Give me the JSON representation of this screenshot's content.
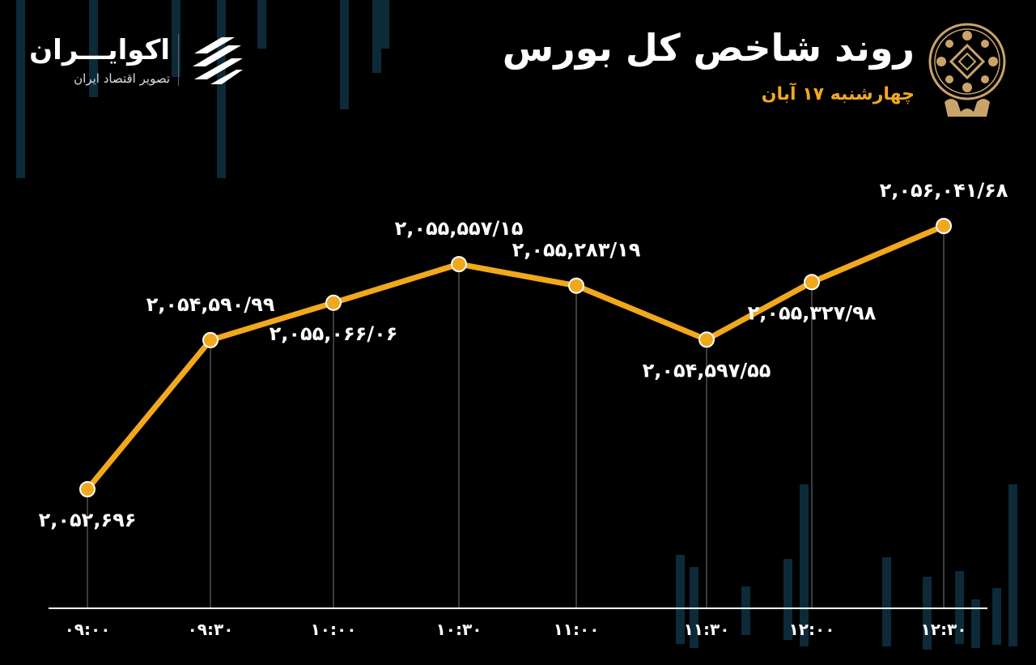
{
  "header": {
    "title": "روند شاخص کل بورس",
    "subtitle": "چهارشنبه ۱۷ آبان"
  },
  "brand": {
    "name": "اکوایـــران",
    "tagline": "تصویر اقتصاد ایران"
  },
  "colors": {
    "background": "#000000",
    "line": "#f2a81d",
    "marker": "#f2a81d",
    "marker_stroke": "#ffffff",
    "axis": "#ffffff",
    "guide": "#777777",
    "accent": "#f2a81d",
    "bg_bars": "#0d2a38"
  },
  "icons": {
    "brand_logo": "ecoiran-logo-icon",
    "emblem": "stock-exchange-emblem-icon"
  },
  "chart_data": {
    "type": "line",
    "title": "روند شاخص کل بورس",
    "xlabel": "",
    "ylabel": "",
    "categories": [
      "۰۹:۰۰",
      "۰۹:۳۰",
      "۱۰:۰۰",
      "۱۰:۳۰",
      "۱۱:۰۰",
      "۱۱:۳۰",
      "۱۲:۰۰",
      "۱۲:۳۰"
    ],
    "values": [
      2052696,
      2054590.99,
      2055066.06,
      2055557.15,
      2055283.19,
      2054597.55,
      2055327.98,
      2056041.68
    ],
    "data_labels": [
      "۲,۰۵۲,۶۹۶",
      "۲,۰۵۴,۵۹۰/۹۹",
      "۲,۰۵۵,۰۶۶/۰۶",
      "۲,۰۵۵,۵۵۷/۱۵",
      "۲,۰۵۵,۲۸۳/۱۹",
      "۲,۰۵۴,۵۹۷/۵۵",
      "۲,۰۵۵,۳۲۷/۹۸",
      "۲,۰۵۶,۰۴۱/۶۸"
    ],
    "label_position": [
      "below",
      "above",
      "below",
      "above",
      "above",
      "below",
      "below",
      "above"
    ],
    "grid": false,
    "legend": "none"
  }
}
